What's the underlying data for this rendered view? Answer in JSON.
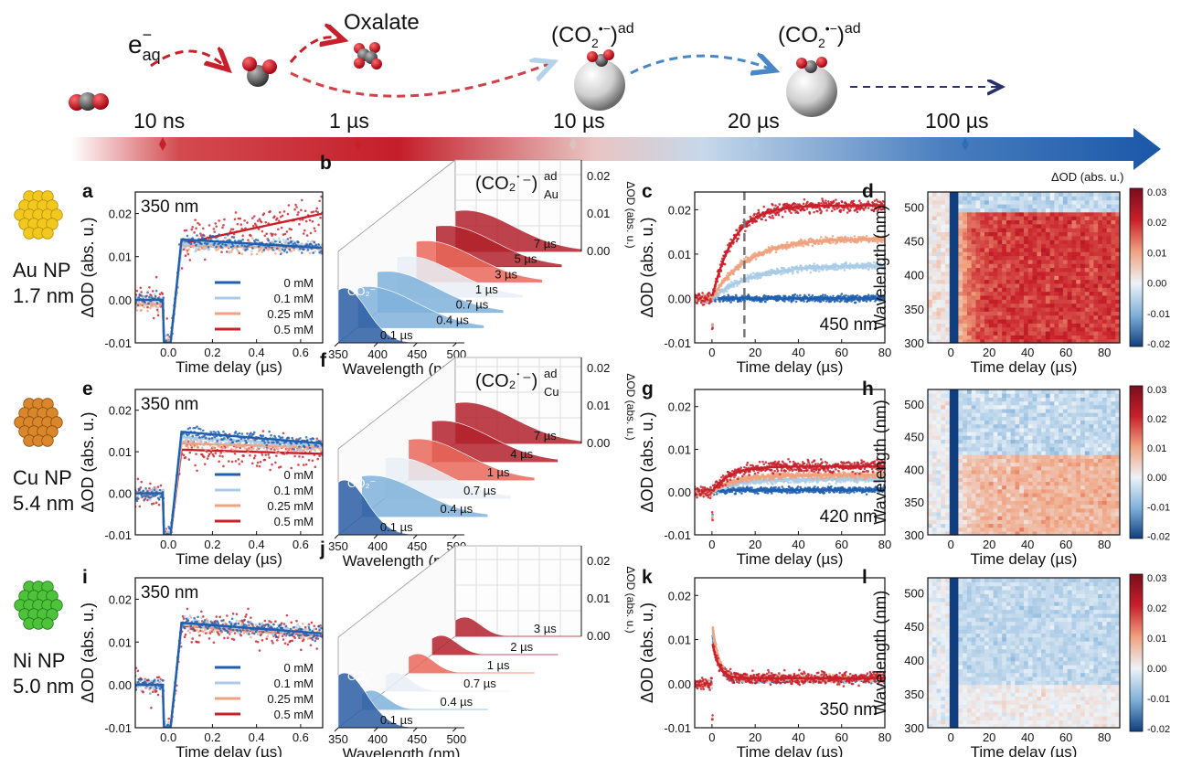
{
  "colors": {
    "c0": "#1f5fb0",
    "c1": "#a9cbe8",
    "c2": "#f0a27f",
    "c3": "#c8202a"
  },
  "timeline": {
    "species": {
      "eaq": "e",
      "eaq_sub": "aq",
      "eaq_sup": "−",
      "oxalate": "Oxalate",
      "co2ad_left": "(CO",
      "co2ad_sub": "2",
      "co2ad_sup": "•−",
      "co2ad_right": ")",
      "co2ad_ad": "ad"
    },
    "ticks": [
      "10 ns",
      "1 µs",
      "10 µs",
      "20 µs",
      "100 µs"
    ]
  },
  "rows": [
    {
      "np_name": "Au NP",
      "np_size": "1.7 nm",
      "np_color": "#f2c81f",
      "np_dark": "#b58f05"
    },
    {
      "np_name": "Cu NP",
      "np_size": "5.4 nm",
      "np_color": "#d9872a",
      "np_dark": "#8a4f10"
    },
    {
      "np_name": "Ni NP",
      "np_size": "5.0 nm",
      "np_color": "#4ec23a",
      "np_dark": "#1f7a18"
    }
  ],
  "labels": {
    "xlabel_short": "Time delay (µs)",
    "xlabel_long": "Time delay (µs)",
    "ylabel_od": "ΔOD (abs. u.)",
    "ylabel_wl": "Wavelength (nm)",
    "xlabel_wl": "Wavelength (nm)",
    "cbar_title": "ΔOD (abs. u.)",
    "co2_minus": "CO₂⁻",
    "co2ad_au": "(CO₂˙⁻)",
    "co2ad_au_sup": "ad",
    "co2ad_au_sub": "Au",
    "co2ad_cu_sub": "Cu"
  },
  "chart_data": [
    {
      "panel": "a",
      "type": "line",
      "annotation": "350 nm",
      "xlabel": "Time delay (µs)",
      "ylabel": "ΔOD (abs. u.)",
      "xlim": [
        -0.15,
        0.7
      ],
      "ylim": [
        -0.01,
        0.025
      ],
      "xticks": [
        0.0,
        0.2,
        0.4,
        0.6
      ],
      "yticks": [
        -0.01,
        0.0,
        0.01,
        0.02
      ],
      "legend": [
        "0 mM",
        "0.1 mM",
        "0.25 mM",
        "0.5 mM"
      ],
      "series": [
        {
          "name": "0 mM",
          "pre": 0.0,
          "dip": -0.01,
          "peak": 0.014,
          "end": 0.012
        },
        {
          "name": "0.1 mM",
          "pre": 0.0,
          "dip": -0.01,
          "peak": 0.013,
          "end": 0.0125
        },
        {
          "name": "0.25 mM",
          "pre": -0.001,
          "dip": -0.01,
          "peak": 0.0125,
          "end": 0.012
        },
        {
          "name": "0.5 mM",
          "pre": 0.0,
          "dip": -0.01,
          "peak": 0.013,
          "end": 0.02
        }
      ]
    },
    {
      "panel": "b",
      "type": "area",
      "xlabel": "Wavelength (nm)",
      "zlabel": "ΔOD (abs. u.)",
      "xticks": [
        350,
        400,
        450,
        500
      ],
      "zticks": [
        0.0,
        0.01,
        0.02
      ],
      "delays": [
        "0.1 µs",
        "0.4 µs",
        "0.7 µs",
        "1 µs",
        "3 µs",
        "5 µs",
        "7 µs"
      ]
    },
    {
      "panel": "c",
      "type": "line",
      "annotation": "450 nm",
      "xlabel": "Time delay (µs)",
      "ylabel": "ΔOD (abs. u.)",
      "xlim": [
        -8,
        80
      ],
      "ylim": [
        -0.01,
        0.024
      ],
      "xticks": [
        0,
        20,
        40,
        60,
        80
      ],
      "yticks": [
        -0.01,
        0.0,
        0.01,
        0.02
      ],
      "vline": 15,
      "series": [
        {
          "name": "0 mM",
          "plateau": 0.0,
          "tau": 4,
          "start": 0.0
        },
        {
          "name": "0.1 mM",
          "plateau": 0.0075,
          "tau": 18
        },
        {
          "name": "0.25 mM",
          "plateau": 0.0135,
          "tau": 16
        },
        {
          "name": "0.5 mM",
          "plateau": 0.021,
          "tau": 10
        }
      ]
    },
    {
      "panel": "d",
      "type": "heatmap",
      "xlabel": "Time delay (µs)",
      "ylabel": "Wavelength (nm)",
      "xticks": [
        0,
        20,
        40,
        60,
        80
      ],
      "yticks": [
        300,
        350,
        400,
        450,
        500
      ],
      "cbar_ticks": [
        0.03,
        0.02,
        0.01,
        0.0,
        -0.01,
        -0.02
      ],
      "fill": 0.018
    },
    {
      "panel": "e",
      "type": "line",
      "annotation": "350 nm",
      "xlabel": "Time delay (µs)",
      "ylabel": "ΔOD (abs. u.)",
      "xlim": [
        -0.15,
        0.7
      ],
      "ylim": [
        -0.01,
        0.025
      ],
      "xticks": [
        0.0,
        0.2,
        0.4,
        0.6
      ],
      "yticks": [
        -0.01,
        0.0,
        0.01,
        0.02
      ],
      "legend": [
        "0 mM",
        "0.1 mM",
        "0.25 mM",
        "0.5 mM"
      ],
      "series": [
        {
          "name": "0 mM",
          "pre": 0.0,
          "dip": -0.01,
          "peak": 0.0148,
          "end": 0.012
        },
        {
          "name": "0.1 mM",
          "pre": 0.0,
          "dip": -0.01,
          "peak": 0.0135,
          "end": 0.0115
        },
        {
          "name": "0.25 mM",
          "pre": 0.0,
          "dip": -0.01,
          "peak": 0.012,
          "end": 0.011
        },
        {
          "name": "0.5 mM",
          "pre": 0.0,
          "dip": -0.01,
          "peak": 0.0105,
          "end": 0.0095
        }
      ]
    },
    {
      "panel": "f",
      "type": "area",
      "xlabel": "Wavelength (nm)",
      "zlabel": "ΔOD (abs. u.)",
      "xticks": [
        350,
        400,
        450,
        500
      ],
      "zticks": [
        0.0,
        0.01,
        0.02
      ],
      "delays": [
        "0.1 µs",
        "0.4 µs",
        "0.7 µs",
        "1 µs",
        "4 µs",
        "7 µs"
      ]
    },
    {
      "panel": "g",
      "type": "line",
      "annotation": "420 nm",
      "xlabel": "Time delay (µs)",
      "ylabel": "ΔOD (abs. u.)",
      "xlim": [
        -8,
        80
      ],
      "ylim": [
        -0.01,
        0.024
      ],
      "xticks": [
        0,
        20,
        40,
        60,
        80
      ],
      "yticks": [
        -0.01,
        0.0,
        0.01,
        0.02
      ],
      "series": [
        {
          "name": "0 mM",
          "plateau": 0.0005,
          "tau": 4
        },
        {
          "name": "0.1 mM",
          "plateau": 0.003,
          "tau": 10
        },
        {
          "name": "0.25 mM",
          "plateau": 0.004,
          "tau": 10
        },
        {
          "name": "0.5 mM",
          "plateau": 0.006,
          "tau": 8
        }
      ]
    },
    {
      "panel": "h",
      "type": "heatmap",
      "xlabel": "Time delay (µs)",
      "ylabel": "Wavelength (nm)",
      "xticks": [
        0,
        20,
        40,
        60,
        80
      ],
      "yticks": [
        300,
        350,
        400,
        450,
        500
      ],
      "cbar_ticks": [
        0.03,
        0.02,
        0.01,
        0.0,
        -0.01,
        -0.02
      ],
      "fill": 0.004
    },
    {
      "panel": "i",
      "type": "line",
      "annotation": "350 nm",
      "xlabel": "Time delay (µs)",
      "ylabel": "ΔOD (abs. u.)",
      "xlim": [
        -0.15,
        0.7
      ],
      "ylim": [
        -0.01,
        0.025
      ],
      "xticks": [
        0.0,
        0.2,
        0.4,
        0.6
      ],
      "yticks": [
        -0.01,
        0.0,
        0.01,
        0.02
      ],
      "legend": [
        "0 mM",
        "0.1 mM",
        "0.25 mM",
        "0.5 mM"
      ],
      "series": [
        {
          "name": "0 mM",
          "pre": 0.0,
          "dip": -0.01,
          "peak": 0.0145,
          "end": 0.012
        },
        {
          "name": "0.1 mM",
          "pre": 0.0,
          "dip": -0.01,
          "peak": 0.0145,
          "end": 0.012
        },
        {
          "name": "0.25 mM",
          "pre": 0.0,
          "dip": -0.01,
          "peak": 0.014,
          "end": 0.0118
        },
        {
          "name": "0.5 mM",
          "pre": 0.0,
          "dip": -0.01,
          "peak": 0.0138,
          "end": 0.0115
        }
      ]
    },
    {
      "panel": "j",
      "type": "area",
      "xlabel": "Wavelength (nm)",
      "zlabel": "ΔOD (abs. u.)",
      "xticks": [
        350,
        400,
        450,
        500
      ],
      "zticks": [
        0.0,
        0.01,
        0.02
      ],
      "delays": [
        "0.1 µs",
        "0.4 µs",
        "0.7 µs",
        "1 µs",
        "2 µs",
        "3 µs"
      ]
    },
    {
      "panel": "k",
      "type": "line",
      "annotation": "350 nm",
      "xlabel": "Time delay (µs)",
      "ylabel": "ΔOD (abs. u.)",
      "xlim": [
        -8,
        80
      ],
      "ylim": [
        -0.01,
        0.024
      ],
      "xticks": [
        0,
        20,
        40,
        60,
        80
      ],
      "yticks": [
        -0.01,
        0.0,
        0.01,
        0.02
      ],
      "series": [
        {
          "name": "0 mM",
          "spike": 0.011,
          "plateau": 0.001
        },
        {
          "name": "0.1 mM",
          "spike": 0.012,
          "plateau": 0.001
        },
        {
          "name": "0.25 mM",
          "spike": 0.013,
          "plateau": 0.0012
        },
        {
          "name": "0.5 mM",
          "spike": 0.009,
          "plateau": 0.0012
        }
      ]
    },
    {
      "panel": "l",
      "type": "heatmap",
      "xlabel": "Time delay (µs)",
      "ylabel": "Wavelength (nm)",
      "xticks": [
        0,
        20,
        40,
        60,
        80
      ],
      "yticks": [
        300,
        350,
        400,
        450,
        500
      ],
      "cbar_ticks": [
        0.03,
        0.02,
        0.01,
        0.0,
        -0.01,
        -0.02
      ],
      "fill": -0.002
    }
  ]
}
